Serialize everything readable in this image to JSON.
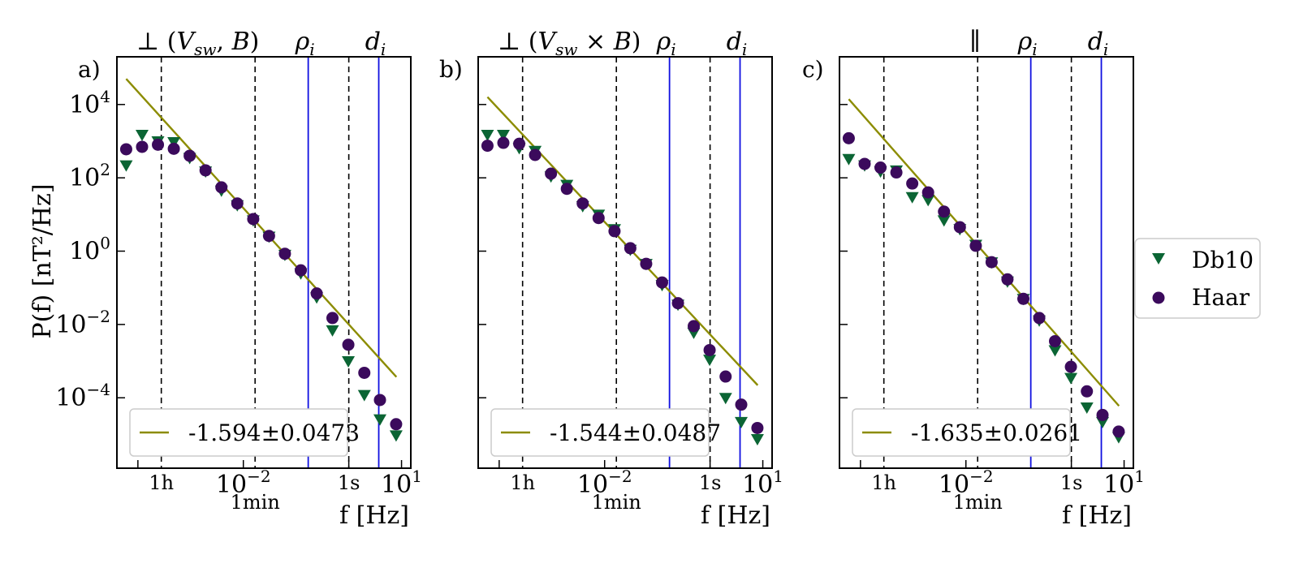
{
  "y_axis_label": "P(f) [nT²/Hz]",
  "legend": {
    "entries": [
      {
        "label": "Db10",
        "marker": "triangle-down",
        "color": "#0b6534"
      },
      {
        "label": "Haar",
        "marker": "circle",
        "color": "#3b0a5c"
      }
    ]
  },
  "colors": {
    "fit": "#8c8c00",
    "scale_lines": "#1010e0",
    "time_lines": "#000000"
  },
  "chart_data": [
    {
      "type": "scatter",
      "panel_label": "a)",
      "title": "⊥ (V_sw, B)",
      "title_parts": [
        "⊥ (",
        "V",
        "sw",
        ", ",
        "B",
        ")"
      ],
      "xlabel": "f [Hz]",
      "xlabel_parts": [
        "f [",
        "Hz",
        "]"
      ],
      "xscale": "log",
      "yscale": "log",
      "xlim": [
        4e-05,
        15
      ],
      "ylim": [
        1.2e-06,
        200000
      ],
      "x_ticks": [
        {
          "value": 0.01,
          "label": "10",
          "sup": "−2"
        },
        {
          "value": 10,
          "label": "10",
          "sup": "1"
        }
      ],
      "y_ticks": [
        {
          "value": 10000,
          "label": "10",
          "sup": "4"
        },
        {
          "value": 100,
          "label": "10",
          "sup": "2"
        },
        {
          "value": 1,
          "label": "10",
          "sup": "0"
        },
        {
          "value": 0.01,
          "label": "10",
          "sup": "−2"
        },
        {
          "value": 0.0001,
          "label": "10",
          "sup": "−4"
        }
      ],
      "time_markers": [
        {
          "label": "1h",
          "freq": 0.000278
        },
        {
          "label": "1min",
          "freq": 0.0167
        },
        {
          "label": "1s",
          "freq": 1
        }
      ],
      "scale_markers": [
        {
          "label": "ρ",
          "sub": "i",
          "freq": 0.17
        },
        {
          "label": "d",
          "sub": "i",
          "freq": 3.7
        }
      ],
      "fit": {
        "label": "-1.594±0.0473",
        "slope": -1.594,
        "x": [
          6e-05,
          8
        ],
        "y": [
          50000,
          0.00037
        ]
      },
      "series": [
        {
          "name": "Db10",
          "marker": "triangle-down",
          "x": [
            6e-05,
            0.00012,
            0.00024,
            0.00048,
            0.00096,
            0.00192,
            0.00384,
            0.00768,
            0.0154,
            0.0307,
            0.0614,
            0.123,
            0.246,
            0.49,
            0.98,
            1.97,
            3.9,
            7.9
          ],
          "y": [
            220,
            1500,
            1000,
            950,
            350,
            150,
            45,
            18,
            7,
            2.5,
            0.8,
            0.25,
            0.055,
            0.007,
            0.001,
            0.00012,
            2.6e-05,
            9.5e-06
          ]
        },
        {
          "name": "Haar",
          "marker": "circle",
          "x": [
            6e-05,
            0.00012,
            0.00024,
            0.00048,
            0.00096,
            0.00192,
            0.00384,
            0.00768,
            0.0154,
            0.0307,
            0.0614,
            0.123,
            0.246,
            0.49,
            0.98,
            1.97,
            3.9,
            7.9
          ],
          "y": [
            600,
            700,
            800,
            620,
            400,
            160,
            55,
            20,
            7.5,
            2.6,
            0.85,
            0.3,
            0.07,
            0.015,
            0.0028,
            0.00048,
            8.7e-05,
            1.9e-05
          ]
        }
      ]
    },
    {
      "type": "scatter",
      "panel_label": "b)",
      "title": "⊥ (V_sw × B)",
      "title_parts": [
        "⊥ (",
        "V",
        "sw",
        " × ",
        "B",
        ")"
      ],
      "xlabel": "f [Hz]",
      "xlabel_parts": [
        "f [",
        "Hz",
        "]"
      ],
      "xscale": "log",
      "yscale": "log",
      "xlim": [
        4e-05,
        15
      ],
      "ylim": [
        1.2e-06,
        200000
      ],
      "x_ticks": [
        {
          "value": 0.01,
          "label": "10",
          "sup": "−2"
        },
        {
          "value": 10,
          "label": "10",
          "sup": "1"
        }
      ],
      "y_ticks": [],
      "time_markers": [
        {
          "label": "1h",
          "freq": 0.000278
        },
        {
          "label": "1min",
          "freq": 0.0167
        },
        {
          "label": "1s",
          "freq": 1
        }
      ],
      "scale_markers": [
        {
          "label": "ρ",
          "sub": "i",
          "freq": 0.17
        },
        {
          "label": "d",
          "sub": "i",
          "freq": 3.7
        }
      ],
      "fit": {
        "label": "-1.544±0.0487",
        "slope": -1.544,
        "x": [
          6e-05,
          8
        ],
        "y": [
          16000,
          0.00022
        ]
      },
      "series": [
        {
          "name": "Db10",
          "marker": "triangle-down",
          "x": [
            6e-05,
            0.00012,
            0.00024,
            0.00048,
            0.00096,
            0.00192,
            0.00384,
            0.00768,
            0.0154,
            0.0307,
            0.0614,
            0.123,
            0.246,
            0.49,
            0.98,
            1.97,
            3.9,
            7.9
          ],
          "y": [
            1500,
            1500,
            650,
            550,
            110,
            65,
            17,
            10,
            4,
            1.1,
            0.45,
            0.12,
            0.035,
            0.006,
            0.0011,
            0.0001,
            2.2e-05,
            7.5e-06
          ]
        },
        {
          "name": "Haar",
          "marker": "circle",
          "x": [
            6e-05,
            0.00012,
            0.00024,
            0.00048,
            0.00096,
            0.00192,
            0.00384,
            0.00768,
            0.0154,
            0.0307,
            0.0614,
            0.123,
            0.246,
            0.49,
            0.98,
            1.97,
            3.9,
            7.9
          ],
          "y": [
            750,
            900,
            850,
            420,
            130,
            50,
            20,
            8,
            3.5,
            1.2,
            0.45,
            0.14,
            0.038,
            0.009,
            0.002,
            0.00038,
            6.5e-05,
            1.5e-05
          ]
        }
      ]
    },
    {
      "type": "scatter",
      "panel_label": "c)",
      "title": "∥",
      "title_parts": [
        "∥"
      ],
      "xlabel": "f [Hz]",
      "xlabel_parts": [
        "f [",
        "Hz",
        "]"
      ],
      "xscale": "log",
      "yscale": "log",
      "xlim": [
        4e-05,
        15
      ],
      "ylim": [
        1.2e-06,
        200000
      ],
      "x_ticks": [
        {
          "value": 0.01,
          "label": "10",
          "sup": "−2"
        },
        {
          "value": 10,
          "label": "10",
          "sup": "1"
        }
      ],
      "y_ticks": [],
      "time_markers": [
        {
          "label": "1h",
          "freq": 0.000278
        },
        {
          "label": "1min",
          "freq": 0.0167
        },
        {
          "label": "1s",
          "freq": 1
        }
      ],
      "scale_markers": [
        {
          "label": "ρ",
          "sub": "i",
          "freq": 0.17
        },
        {
          "label": "d",
          "sub": "i",
          "freq": 3.7
        }
      ],
      "fit": {
        "label": "-1.635±0.0261",
        "slope": -1.635,
        "x": [
          6e-05,
          8
        ],
        "y": [
          14000,
          6e-05
        ]
      },
      "series": [
        {
          "name": "Db10",
          "marker": "triangle-down",
          "x": [
            6e-05,
            0.00012,
            0.00024,
            0.00048,
            0.00096,
            0.00192,
            0.00384,
            0.00768,
            0.0154,
            0.0307,
            0.0614,
            0.123,
            0.246,
            0.49,
            0.98,
            1.97,
            3.9,
            7.9
          ],
          "y": [
            330,
            220,
            150,
            160,
            30,
            25,
            7,
            4,
            1.5,
            0.5,
            0.15,
            0.05,
            0.013,
            0.002,
            0.00035,
            5.5e-05,
            2.2e-05,
            8.5e-06
          ]
        },
        {
          "name": "Haar",
          "marker": "circle",
          "x": [
            6e-05,
            0.00012,
            0.00024,
            0.00048,
            0.00096,
            0.00192,
            0.00384,
            0.00768,
            0.0154,
            0.0307,
            0.0614,
            0.123,
            0.246,
            0.49,
            0.98,
            1.97,
            3.9,
            7.9
          ],
          "y": [
            1200,
            240,
            190,
            140,
            70,
            40,
            12,
            4.5,
            1.4,
            0.5,
            0.17,
            0.05,
            0.015,
            0.0035,
            0.0007,
            0.00015,
            3.4e-05,
            1.2e-05
          ]
        }
      ]
    }
  ]
}
